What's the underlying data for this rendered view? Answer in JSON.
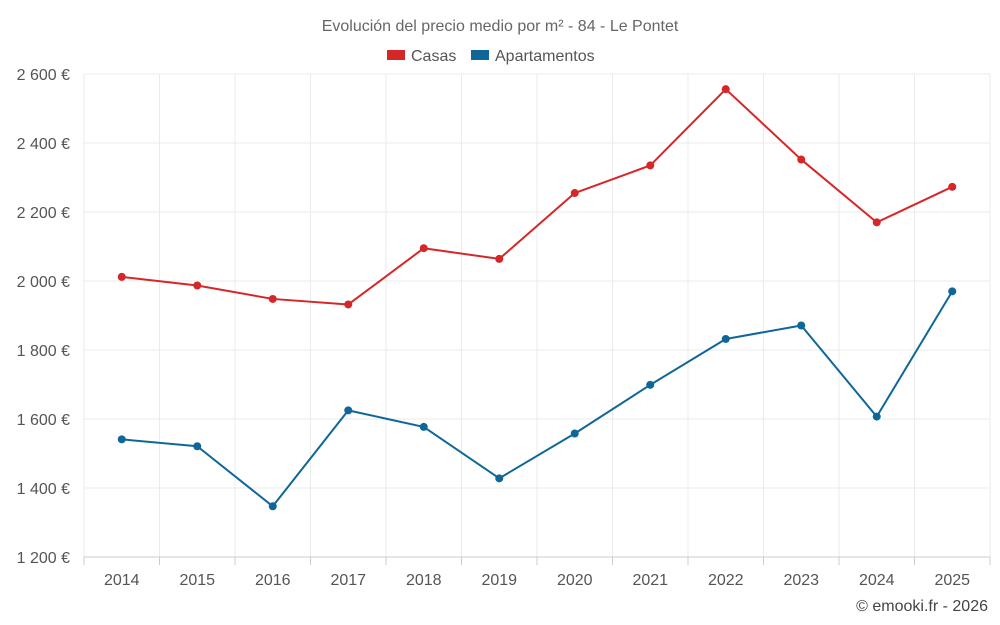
{
  "chart_data": {
    "type": "line",
    "title": "Evolución del precio medio por m² - 84 - Le Pontet",
    "categories": [
      "2014",
      "2015",
      "2016",
      "2017",
      "2018",
      "2019",
      "2020",
      "2021",
      "2022",
      "2023",
      "2024",
      "2025"
    ],
    "series": [
      {
        "name": "Casas",
        "color": "#d62728",
        "values": [
          2012,
          1987,
          1948,
          1932,
          2095,
          2064,
          2255,
          2335,
          2556,
          2352,
          2170,
          2273
        ]
      },
      {
        "name": "Apartamentos",
        "color": "#0f6799",
        "values": [
          1541,
          1521,
          1347,
          1625,
          1577,
          1428,
          1558,
          1699,
          1832,
          1871,
          1607,
          1970
        ]
      }
    ],
    "ylim": [
      1200,
      2600
    ],
    "yticks": [
      1200,
      1400,
      1600,
      1800,
      2000,
      2200,
      2400,
      2600
    ],
    "ytick_labels": [
      "1 200 €",
      "1 400 €",
      "1 600 €",
      "1 800 €",
      "2 000 €",
      "2 200 €",
      "2 400 €",
      "2 600 €"
    ],
    "xlabel": "",
    "ylabel": "",
    "grid": true,
    "legend_position": "top-center"
  },
  "credit": "© emooki.fr - 2026"
}
